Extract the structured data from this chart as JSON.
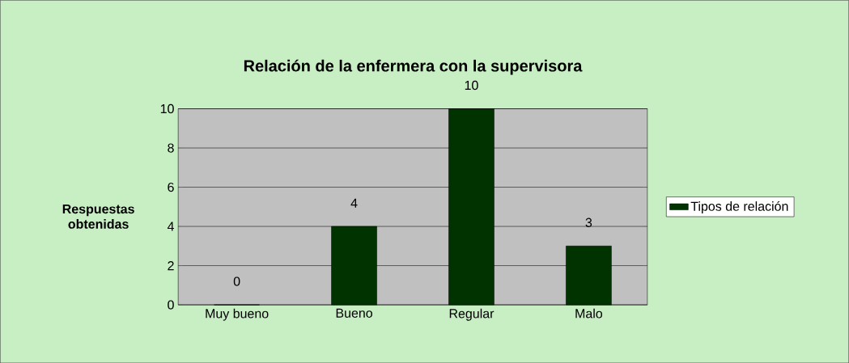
{
  "chart_data": {
    "type": "bar",
    "title": "Relación de la enfermera con  la supervisora",
    "ylabel": "Respuestas obtenidas",
    "categories": [
      "Muy bueno",
      "Bueno",
      "Regular",
      "Malo"
    ],
    "series": [
      {
        "name": "Tipos de relación",
        "color": "#003300",
        "values": [
          0,
          4,
          10,
          3
        ]
      }
    ],
    "ylim": [
      0,
      10
    ],
    "yticks": [
      0,
      2,
      4,
      6,
      8,
      10
    ],
    "grid": "y",
    "legend": "right",
    "data_labels": true
  }
}
